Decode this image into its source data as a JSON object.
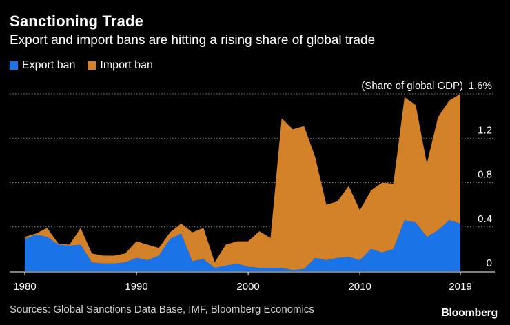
{
  "chart_data": {
    "type": "area",
    "stacked": true,
    "title": "Sanctioning Trade",
    "subtitle": "Export and import bans are hitting a rising share of global trade",
    "unit_label": "(Share of global GDP)",
    "x": [
      1980,
      1981,
      1982,
      1983,
      1984,
      1985,
      1986,
      1987,
      1988,
      1989,
      1990,
      1991,
      1992,
      1993,
      1994,
      1995,
      1996,
      1997,
      1998,
      1999,
      2000,
      2001,
      2002,
      2003,
      2004,
      2005,
      2006,
      2007,
      2008,
      2009,
      2010,
      2011,
      2012,
      2013,
      2014,
      2015,
      2016,
      2017,
      2018,
      2019
    ],
    "series": [
      {
        "name": "Export ban",
        "color": "#1a74e8",
        "values": [
          0.29,
          0.33,
          0.31,
          0.24,
          0.23,
          0.24,
          0.08,
          0.07,
          0.07,
          0.08,
          0.12,
          0.1,
          0.14,
          0.29,
          0.34,
          0.09,
          0.11,
          0.03,
          0.05,
          0.07,
          0.04,
          0.03,
          0.03,
          0.03,
          0.01,
          0.02,
          0.12,
          0.1,
          0.12,
          0.13,
          0.1,
          0.2,
          0.17,
          0.2,
          0.46,
          0.44,
          0.31,
          0.37,
          0.46,
          0.43
        ]
      },
      {
        "name": "Import ban",
        "color": "#d4822a",
        "values": [
          0.02,
          0.01,
          0.08,
          0.01,
          0.01,
          0.15,
          0.08,
          0.07,
          0.07,
          0.08,
          0.15,
          0.14,
          0.07,
          0.06,
          0.09,
          0.26,
          0.28,
          0.05,
          0.19,
          0.2,
          0.23,
          0.33,
          0.27,
          1.35,
          1.27,
          1.29,
          0.91,
          0.5,
          0.51,
          0.64,
          0.45,
          0.53,
          0.63,
          0.59,
          1.11,
          1.06,
          0.66,
          1.02,
          1.08,
          1.17
        ]
      }
    ],
    "y_ticks": [
      {
        "value": 0,
        "label": "0"
      },
      {
        "value": 0.4,
        "label": "0.4"
      },
      {
        "value": 0.8,
        "label": "0.8"
      },
      {
        "value": 1.2,
        "label": "1.2"
      },
      {
        "value": 1.6,
        "label": "1.6%"
      }
    ],
    "x_ticks": [
      {
        "value": 1980,
        "label": "1980"
      },
      {
        "value": 1990,
        "label": "1990"
      },
      {
        "value": 2000,
        "label": "2000"
      },
      {
        "value": 2010,
        "label": "2010"
      },
      {
        "value": 2019,
        "label": "2019"
      }
    ],
    "ylim": [
      0,
      1.6
    ],
    "xlim": [
      1980,
      2019
    ],
    "legend_position": "top-left",
    "grid": "horizontal-dotted"
  },
  "source": "Sources: Global Sanctions Data Base, IMF, Bloomberg Economics",
  "brand": "Bloomberg"
}
